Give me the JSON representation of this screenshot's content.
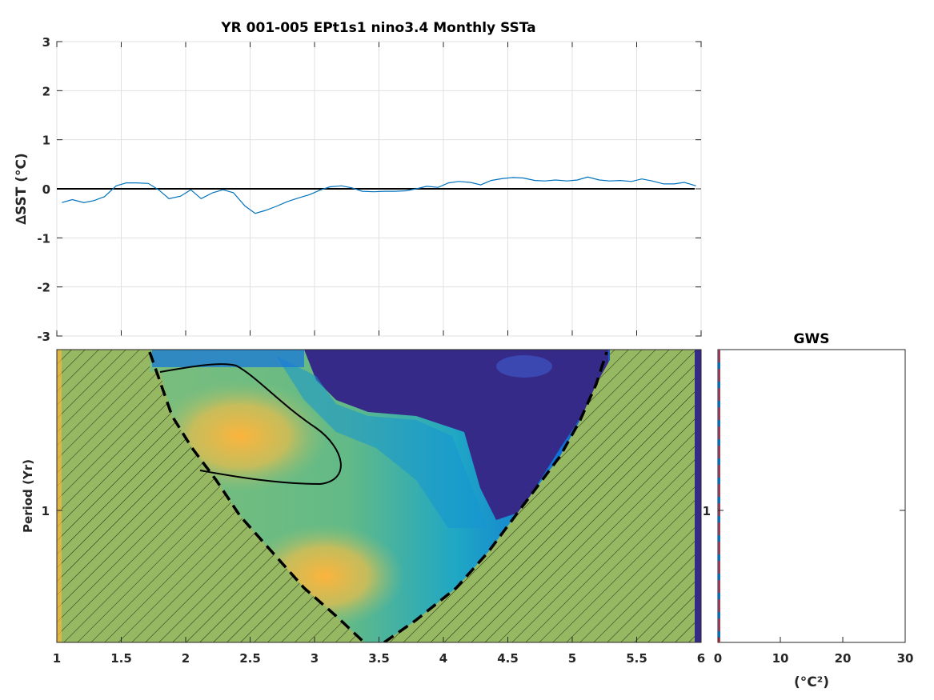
{
  "chart_data": [
    {
      "type": "line",
      "title": "YR 001-005 EPt1s1 nino3.4 Monthly SSTa",
      "xlabel": "",
      "ylabel": "∆SST (°C)",
      "xlim": [
        1,
        6
      ],
      "ylim": [
        -3,
        3
      ],
      "grid": true,
      "yticks": [
        "-3",
        "-2",
        "-1",
        "0",
        "1",
        "2",
        "3"
      ],
      "zero_line": 0,
      "series": [
        {
          "color": "#0072bd",
          "x": [
            1.04,
            1.12,
            1.21,
            1.29,
            1.37,
            1.46,
            1.54,
            1.62,
            1.71,
            1.79,
            1.87,
            1.96,
            2.04,
            2.12,
            2.21,
            2.29,
            2.37,
            2.46,
            2.54,
            2.62,
            2.71,
            2.79,
            2.87,
            2.96,
            3.04,
            3.12,
            3.21,
            3.29,
            3.37,
            3.46,
            3.54,
            3.62,
            3.71,
            3.79,
            3.87,
            3.96,
            4.04,
            4.12,
            4.21,
            4.29,
            4.37,
            4.46,
            4.54,
            4.62,
            4.71,
            4.79,
            4.87,
            4.96,
            5.04,
            5.12,
            5.21,
            5.29,
            5.37,
            5.46,
            5.54,
            5.62,
            5.71,
            5.79,
            5.87,
            5.96
          ],
          "y": [
            -0.28,
            -0.22,
            -0.28,
            -0.24,
            -0.16,
            0.06,
            0.12,
            0.12,
            0.11,
            -0.02,
            -0.2,
            -0.15,
            -0.02,
            -0.2,
            -0.08,
            -0.02,
            -0.08,
            -0.35,
            -0.5,
            -0.44,
            -0.35,
            -0.26,
            -0.19,
            -0.12,
            -0.03,
            0.04,
            0.06,
            0.02,
            -0.05,
            -0.06,
            -0.05,
            -0.05,
            -0.04,
            0.0,
            0.05,
            0.03,
            0.12,
            0.15,
            0.13,
            0.08,
            0.17,
            0.21,
            0.23,
            0.22,
            0.17,
            0.16,
            0.18,
            0.16,
            0.18,
            0.24,
            0.18,
            0.16,
            0.17,
            0.15,
            0.2,
            0.16,
            0.1,
            0.1,
            0.13,
            0.06
          ]
        }
      ]
    },
    {
      "type": "heatmap",
      "xlabel": "",
      "ylabel": "Period (Yr)",
      "xlim": [
        1,
        6
      ],
      "xticks": [
        "1",
        "1.5",
        "2",
        "2.5",
        "3",
        "3.5",
        "4",
        "4.5",
        "5",
        "5.5",
        "6"
      ],
      "yticks": [
        "1"
      ],
      "colors": {
        "low": "#352a87",
        "mid1": "#0f5cdd",
        "mid2": "#1aa5c8",
        "mid3": "#7cbf7a",
        "high": "#fcb43c",
        "hatch_fill": "#97b862"
      },
      "cone_of_influence": "hatched",
      "significance_contour": true
    },
    {
      "type": "line",
      "title": "GWS",
      "xlabel": "(°C²)",
      "ylabel": "",
      "xlim": [
        0,
        30
      ],
      "xticks": [
        "0",
        "10",
        "20",
        "30"
      ],
      "yticks": [
        "1"
      ],
      "series": [
        {
          "color": "#0072bd",
          "x": [
            0.1,
            0.1
          ],
          "y": [
            0,
            1
          ]
        },
        {
          "color": "#d62728",
          "style": "dashed",
          "x": [
            0.1,
            0.1
          ],
          "y": [
            0,
            1
          ]
        }
      ]
    }
  ]
}
